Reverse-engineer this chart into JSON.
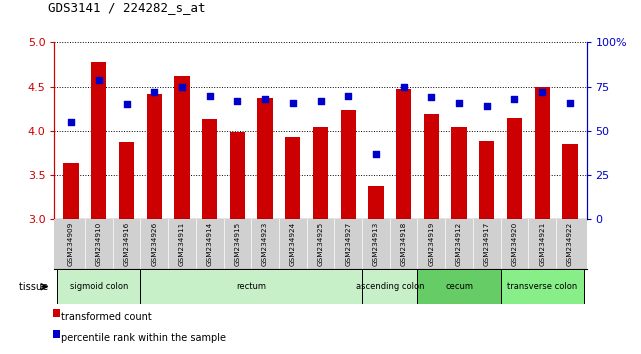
{
  "title": "GDS3141 / 224282_s_at",
  "samples": [
    "GSM234909",
    "GSM234910",
    "GSM234916",
    "GSM234926",
    "GSM234911",
    "GSM234914",
    "GSM234915",
    "GSM234923",
    "GSM234924",
    "GSM234925",
    "GSM234927",
    "GSM234913",
    "GSM234918",
    "GSM234919",
    "GSM234912",
    "GSM234917",
    "GSM234920",
    "GSM234921",
    "GSM234922"
  ],
  "bar_values": [
    3.64,
    4.78,
    3.88,
    4.42,
    4.62,
    4.14,
    3.99,
    4.37,
    3.93,
    4.04,
    4.24,
    3.38,
    4.47,
    4.19,
    4.05,
    3.89,
    4.15,
    4.5,
    3.85
  ],
  "dot_values": [
    55,
    79,
    65,
    72,
    75,
    70,
    67,
    68,
    66,
    67,
    70,
    37,
    75,
    69,
    66,
    64,
    68,
    72,
    66
  ],
  "ylim_left": [
    3.0,
    5.0
  ],
  "ylim_right": [
    0,
    100
  ],
  "yticks_left": [
    3.0,
    3.5,
    4.0,
    4.5,
    5.0
  ],
  "yticks_right": [
    0,
    25,
    50,
    75,
    100
  ],
  "ytick_labels_right": [
    "0",
    "25",
    "50",
    "75",
    "100%"
  ],
  "bar_color": "#cc0000",
  "dot_color": "#0000cc",
  "tissue_groups": [
    {
      "label": "sigmoid colon",
      "start": 0,
      "end": 3,
      "color": "#c8f0c8"
    },
    {
      "label": "rectum",
      "start": 3,
      "end": 11,
      "color": "#c8f0c8"
    },
    {
      "label": "ascending colon",
      "start": 11,
      "end": 13,
      "color": "#c8f0c8"
    },
    {
      "label": "cecum",
      "start": 13,
      "end": 16,
      "color": "#66cc66"
    },
    {
      "label": "transverse colon",
      "start": 16,
      "end": 19,
      "color": "#88ee88"
    }
  ],
  "legend_bar": "transformed count",
  "legend_dot": "percentile rank within the sample",
  "left_axis_color": "#cc0000",
  "right_axis_color": "#0000cc",
  "base_value": 3.0,
  "xtick_bg": "#d0d0d0",
  "plot_bg": "#ffffff"
}
